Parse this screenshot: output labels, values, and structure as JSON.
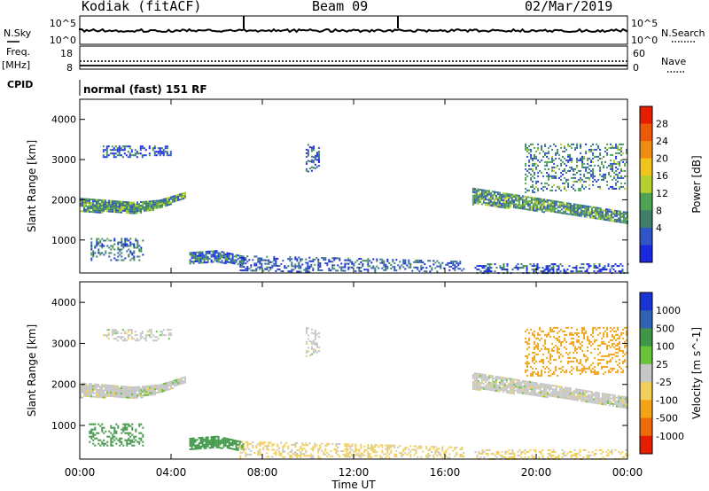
{
  "header": {
    "station": "Kodiak (fitACF)",
    "beam": "Beam 09",
    "date": "02/Mar/2019"
  },
  "strip_labels": {
    "nsky": "N.Sky",
    "nsearch": "N.Search",
    "freq_line1": "Freq.",
    "freq_line2": "[MHz]",
    "nave": "Nave",
    "cpid": "CPID",
    "cpid_value": "normal (fast) 151 RF",
    "noise_ticks": [
      "10^5",
      "10^0"
    ],
    "freq_ticks": [
      "18",
      "8"
    ],
    "nave_ticks": [
      "60",
      "0"
    ]
  },
  "colors": {
    "power": [
      "#1a28e0",
      "#2f55c6",
      "#3f7f6a",
      "#4da255",
      "#b6cf2c",
      "#f0c41a",
      "#f08c10",
      "#ec5a08",
      "#e61e00"
    ],
    "velocity": [
      "#e61e00",
      "#ef6a08",
      "#f3a416",
      "#f2cf58",
      "#c6c6c6",
      "#68c438",
      "#3f9648",
      "#2f62b0",
      "#1a34d2"
    ],
    "power_ticks": [
      "28",
      "24",
      "20",
      "16",
      "12",
      "8",
      "4"
    ],
    "velocity_ticks": [
      "1000",
      "500",
      "100",
      "25",
      "-25",
      "-100",
      "-500",
      "-1000"
    ]
  },
  "chart_data": [
    {
      "type": "heatmap",
      "panel": "power",
      "ylabel": "Slant Range [km]",
      "colorbar_label": "Power [dB]",
      "xlim_hours": [
        0,
        24
      ],
      "ylim_km": [
        180,
        4500
      ],
      "yticks": [
        1000,
        2000,
        3000,
        4000
      ],
      "ytick_labels": [
        "1000",
        "2000",
        "3000",
        "4000"
      ],
      "regions": [
        {
          "t": [
            0.0,
            4.6
          ],
          "r_start": [
            1700,
            1700,
            1650,
            1800,
            2050
          ],
          "r_end": [
            2050,
            2000,
            1950,
            2000,
            2200
          ],
          "value": 12,
          "density": 0.95
        },
        {
          "t": [
            1.0,
            4.0
          ],
          "r_start": [
            3050,
            3100
          ],
          "r_end": [
            3350,
            3350
          ],
          "value": 6,
          "density": 0.45
        },
        {
          "t": [
            0.4,
            2.8
          ],
          "r_start": [
            500,
            500
          ],
          "r_end": [
            1050,
            1050
          ],
          "value": 8,
          "density": 0.35
        },
        {
          "t": [
            4.8,
            7.2
          ],
          "r_start": [
            400,
            450,
            400
          ],
          "r_end": [
            700,
            750,
            600
          ],
          "value": 8,
          "density": 0.8
        },
        {
          "t": [
            9.9,
            10.5
          ],
          "r_start": [
            2700,
            2800
          ],
          "r_end": [
            3400,
            3300
          ],
          "value": 6,
          "density": 0.45
        },
        {
          "t": [
            7.0,
            16.8
          ],
          "r_start": [
            230,
            230,
            230
          ],
          "r_end": [
            620,
            560,
            480
          ],
          "value": 6,
          "density": 0.4
        },
        {
          "t": [
            17.2,
            24.0
          ],
          "r_start": [
            1900,
            1700,
            1400
          ],
          "r_end": [
            2300,
            2000,
            1700
          ],
          "value": 12,
          "density": 0.9
        },
        {
          "t": [
            19.5,
            24.0
          ],
          "r_start": [
            2200,
            2300
          ],
          "r_end": [
            3400,
            3400
          ],
          "value": 10,
          "density": 0.3
        },
        {
          "t": [
            17.3,
            24.0
          ],
          "r_start": [
            180,
            180
          ],
          "r_end": [
            420,
            420
          ],
          "value": 6,
          "density": 0.35
        }
      ]
    },
    {
      "type": "heatmap",
      "panel": "velocity",
      "ylabel": "Slant Range [km]",
      "xlabel": "Time UT",
      "colorbar_label": "Velocity [m s^-1]",
      "xlim_hours": [
        0,
        24
      ],
      "ylim_km": [
        180,
        4500
      ],
      "xticks_hours": [
        0,
        4,
        8,
        12,
        16,
        20,
        24
      ],
      "xtick_labels": [
        "00:00",
        "04:00",
        "08:00",
        "12:00",
        "16:00",
        "20:00",
        "00:00"
      ],
      "yticks": [
        1000,
        2000,
        3000,
        4000
      ],
      "ytick_labels": [
        "1000",
        "2000",
        "3000",
        "4000"
      ],
      "regions": [
        {
          "t": [
            0.0,
            4.6
          ],
          "r_start": [
            1700,
            1700,
            1650,
            1800,
            2050
          ],
          "r_end": [
            2050,
            2000,
            1950,
            2000,
            2200
          ],
          "value": 0,
          "density": 0.95
        },
        {
          "t": [
            1.0,
            4.0
          ],
          "r_start": [
            3050,
            3100
          ],
          "r_end": [
            3350,
            3350
          ],
          "value": 0,
          "density": 0.45
        },
        {
          "t": [
            0.4,
            2.8
          ],
          "r_start": [
            500,
            500
          ],
          "r_end": [
            1050,
            1050
          ],
          "value": 150,
          "density": 0.35
        },
        {
          "t": [
            4.8,
            7.2
          ],
          "r_start": [
            400,
            450,
            400
          ],
          "r_end": [
            700,
            750,
            600
          ],
          "value": 150,
          "density": 0.8
        },
        {
          "t": [
            9.9,
            10.5
          ],
          "r_start": [
            2700,
            2800
          ],
          "r_end": [
            3400,
            3300
          ],
          "value": 0,
          "density": 0.45
        },
        {
          "t": [
            7.0,
            16.8
          ],
          "r_start": [
            230,
            230,
            230
          ],
          "r_end": [
            620,
            560,
            480
          ],
          "value": -40,
          "density": 0.4
        },
        {
          "t": [
            17.2,
            24.0
          ],
          "r_start": [
            1900,
            1700,
            1400
          ],
          "r_end": [
            2300,
            2000,
            1700
          ],
          "value": 0,
          "density": 0.9
        },
        {
          "t": [
            19.5,
            24.0
          ],
          "r_start": [
            2200,
            2300
          ],
          "r_end": [
            3400,
            3400
          ],
          "value": -150,
          "density": 0.3
        },
        {
          "t": [
            17.3,
            24.0
          ],
          "r_start": [
            180,
            180
          ],
          "r_end": [
            420,
            420
          ],
          "value": -40,
          "density": 0.35
        }
      ]
    }
  ]
}
